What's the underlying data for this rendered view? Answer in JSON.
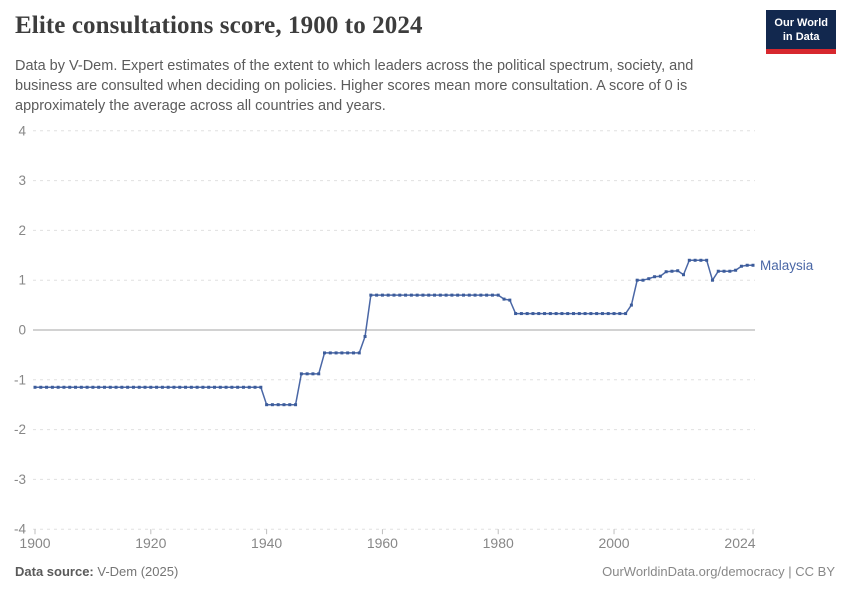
{
  "header": {
    "title": "Elite consultations score, 1900 to 2024",
    "logo": {
      "line1": "Our World",
      "line2": "in Data"
    }
  },
  "subtitle": "Data by V-Dem. Expert estimates of the extent to which leaders across the political spectrum, society, and business are consulted when deciding on policies. Higher scores mean more consultation. A score of 0 is approximately the average across all countries and years.",
  "footer": {
    "source_label": "Data source:",
    "source_value": "V-Dem (2025)",
    "credit": "OurWorldinData.org/democracy | CC BY"
  },
  "colors": {
    "line": "#4a67a6",
    "marker": "#3c5c9b",
    "entity_label": "#4a67a6",
    "grid": "#e0e0e0",
    "zero_line": "#a5a5a5",
    "axis_text": "#878787",
    "tick_mark": "#bdbdbd",
    "logo_bg": "#12284e",
    "logo_stripe": "#d7282e"
  },
  "chart_data": {
    "type": "line",
    "title": "Elite consultations score, 1900 to 2024",
    "xlabel": "",
    "ylabel": "",
    "xlim": [
      1900,
      2024
    ],
    "ylim": [
      -4,
      4
    ],
    "xticks": [
      1900,
      1920,
      1940,
      1960,
      1980,
      2000,
      2024
    ],
    "yticks": [
      4,
      3,
      2,
      1,
      0,
      -1,
      -2,
      -3,
      -4
    ],
    "grid": "horizontal-dashed, solid line at 0",
    "legend_position": "label at end of line",
    "series": [
      {
        "name": "Malaysia",
        "color": "#4a67a6",
        "x_start": 1900,
        "x_step": 1,
        "values": [
          -1.15,
          -1.15,
          -1.15,
          -1.15,
          -1.15,
          -1.15,
          -1.15,
          -1.15,
          -1.15,
          -1.15,
          -1.15,
          -1.15,
          -1.15,
          -1.15,
          -1.15,
          -1.15,
          -1.15,
          -1.15,
          -1.15,
          -1.15,
          -1.15,
          -1.15,
          -1.15,
          -1.15,
          -1.15,
          -1.15,
          -1.15,
          -1.15,
          -1.15,
          -1.15,
          -1.15,
          -1.15,
          -1.15,
          -1.15,
          -1.15,
          -1.15,
          -1.15,
          -1.15,
          -1.15,
          -1.15,
          -1.5,
          -1.5,
          -1.5,
          -1.5,
          -1.5,
          -1.5,
          -0.88,
          -0.88,
          -0.88,
          -0.88,
          -0.46,
          -0.46,
          -0.46,
          -0.46,
          -0.46,
          -0.46,
          -0.46,
          -0.13,
          0.7,
          0.7,
          0.7,
          0.7,
          0.7,
          0.7,
          0.7,
          0.7,
          0.7,
          0.7,
          0.7,
          0.7,
          0.7,
          0.7,
          0.7,
          0.7,
          0.7,
          0.7,
          0.7,
          0.7,
          0.7,
          0.7,
          0.7,
          0.62,
          0.6,
          0.33,
          0.33,
          0.33,
          0.33,
          0.33,
          0.33,
          0.33,
          0.33,
          0.33,
          0.33,
          0.33,
          0.33,
          0.33,
          0.33,
          0.33,
          0.33,
          0.33,
          0.33,
          0.33,
          0.33,
          0.5,
          1.0,
          1.0,
          1.03,
          1.07,
          1.08,
          1.17,
          1.18,
          1.19,
          1.11,
          1.4,
          1.4,
          1.4,
          1.4,
          1.0,
          1.18,
          1.18,
          1.18,
          1.2,
          1.28,
          1.3,
          1.3
        ]
      }
    ]
  }
}
